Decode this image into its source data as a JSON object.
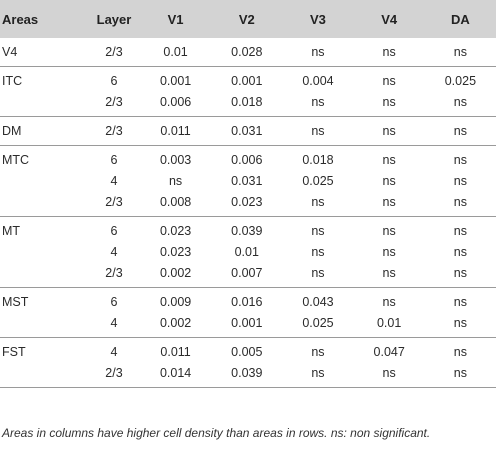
{
  "columns": [
    "Areas",
    "Layer",
    "V1",
    "V2",
    "V3",
    "V4",
    "DA"
  ],
  "groups": [
    {
      "area": "V4",
      "rows": [
        {
          "layer": "2/3",
          "values": [
            "0.01",
            "0.028",
            "ns",
            "ns",
            "ns"
          ]
        }
      ]
    },
    {
      "area": "ITC",
      "rows": [
        {
          "layer": "6",
          "values": [
            "0.001",
            "0.001",
            "0.004",
            "ns",
            "0.025"
          ]
        },
        {
          "layer": "2/3",
          "values": [
            "0.006",
            "0.018",
            "ns",
            "ns",
            "ns"
          ]
        }
      ]
    },
    {
      "area": "DM",
      "rows": [
        {
          "layer": "2/3",
          "values": [
            "0.011",
            "0.031",
            "ns",
            "ns",
            "ns"
          ]
        }
      ]
    },
    {
      "area": "MTC",
      "rows": [
        {
          "layer": "6",
          "values": [
            "0.003",
            "0.006",
            "0.018",
            "ns",
            "ns"
          ]
        },
        {
          "layer": "4",
          "values": [
            "ns",
            "0.031",
            "0.025",
            "ns",
            "ns"
          ]
        },
        {
          "layer": "2/3",
          "values": [
            "0.008",
            "0.023",
            "ns",
            "ns",
            "ns"
          ]
        }
      ]
    },
    {
      "area": "MT",
      "rows": [
        {
          "layer": "6",
          "values": [
            "0.023",
            "0.039",
            "ns",
            "ns",
            "ns"
          ]
        },
        {
          "layer": "4",
          "values": [
            "0.023",
            "0.01",
            "ns",
            "ns",
            "ns"
          ]
        },
        {
          "layer": "2/3",
          "values": [
            "0.002",
            "0.007",
            "ns",
            "ns",
            "ns"
          ]
        }
      ]
    },
    {
      "area": "MST",
      "rows": [
        {
          "layer": "6",
          "values": [
            "0.009",
            "0.016",
            "0.043",
            "ns",
            "ns"
          ]
        },
        {
          "layer": "4",
          "values": [
            "0.002",
            "0.001",
            "0.025",
            "0.01",
            "ns"
          ]
        }
      ]
    },
    {
      "area": "FST",
      "rows": [
        {
          "layer": "4",
          "values": [
            "0.011",
            "0.005",
            "ns",
            "0.047",
            "ns"
          ]
        },
        {
          "layer": "2/3",
          "values": [
            "0.014",
            "0.039",
            "ns",
            "ns",
            "ns"
          ]
        }
      ]
    }
  ],
  "footnote": "Areas in columns have higher cell density than areas in rows. ns: non significant.",
  "colors": {
    "header_bg": "#d3d3d3",
    "rule": "#9a9a9a",
    "text": "#2b2b2b"
  }
}
